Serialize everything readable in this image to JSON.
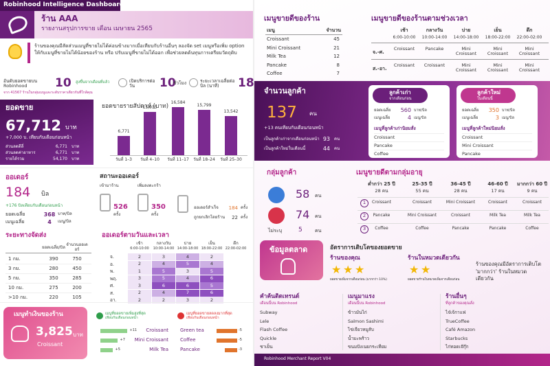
{
  "header": {
    "title": "Robinhood Intelligence Dashboard",
    "store": "ร้าน AAA",
    "subtitle": "รายงานสรุปการขาย เดือน เมษายน 2565"
  },
  "insight": "ร้านของคุณมีสัดส่วนเมนูที่ขายไม่ได้ค่อนข้างมากเมื่อเทียบกับร้านอื่นๆ ลองจัด set เมนูหรือเพิ่ม option ให้กับเมนูที่ขายไม่ได้น้อยของร้าน หรือ ปรับเมนูที่ขายไม่ได้ออก เพื่อช่วยลดต้นทุนการเตรียมวัตถุดิบ",
  "kpis": {
    "rank": {
      "label": "อันดับยอดขายบน Robinhood",
      "value": 10,
      "change": "สูงขึ้นจากเดือนที่แล้ว",
      "note": "จาก 41567 ร้านในกลุ่มเมนูและระดับราคาเดียวกันที่ใกล้คุณ"
    },
    "open_hours": {
      "label": "เปิดบริการต่อวัน",
      "value": 10,
      "unit": "ชั่วโมง"
    },
    "avg_time": {
      "label": "ระยะเวลาเฉลี่ยต่อบิล (นาที)",
      "value": 18
    }
  },
  "sales": {
    "title": "ยอดขาย",
    "value": "67,712",
    "unit": "บาท",
    "change": "+7,000 บ. เทียบกับเดือนก่อนหน้า",
    "rows": [
      {
        "label": "ส่วนลดดีลี่",
        "value": "6,771",
        "unit": "บาท"
      },
      {
        "label": "ส่วนลดค่าอาหาร",
        "value": "6,771",
        "unit": "บาท"
      },
      {
        "label": "รายได้รวม",
        "value": "54,170",
        "unit": "บาท"
      }
    ]
  },
  "weekly_chart": {
    "type": "bar",
    "title": "ยอดขายรายสัปดาห์ (บาท)",
    "categories": [
      "วันที่ 1–3",
      "วันที่ 4–10",
      "วันที่ 11–17",
      "วันที่ 18–24",
      "วันที่ 25–30"
    ],
    "values": [
      6771,
      15015,
      16584,
      15799,
      13542
    ],
    "value_labels": [
      "6,771",
      "15,015",
      "16,584",
      "15,799",
      "13,542"
    ],
    "color": "#7b2a90"
  },
  "orders": {
    "title": "ออเดอร์",
    "value": 184,
    "unit": "บิล",
    "change": "+176 บิลเทียบกับเดือนก่อนหน้า",
    "avg_sales": {
      "label": "ยอดเฉลี่ย",
      "value": 368,
      "unit": "บาท/บิล"
    },
    "avg_items": {
      "label": "เมนูเฉลี่ย",
      "value": 4,
      "unit": "เมนู/บิล"
    }
  },
  "order_status": {
    "title": "สถานะออเดอร์",
    "visits": {
      "label": "เข้ามาร้าน",
      "value": 526,
      "unit": "ครั้ง"
    },
    "cart": {
      "label": "เพิ่มลงตะกร้า",
      "value": 350,
      "unit": "ครั้ง"
    },
    "success": {
      "label": "ออเดอร์สำเร็จ",
      "value": 184,
      "unit": "ครั้ง"
    },
    "cancelled": {
      "label": "ถูกยกเลิกโดยร้าน",
      "value": 22,
      "unit": "ครั้ง"
    }
  },
  "distance": {
    "title": "ระยะทางจัดส่ง",
    "headers": [
      "ยอดเฉลี่ย/บิล",
      "จำนวนออเดอร์"
    ],
    "rows": [
      [
        "1 กม.",
        390,
        750
      ],
      [
        "3 กม.",
        280,
        450
      ],
      [
        "5 กม.",
        350,
        285
      ],
      [
        "10 กม.",
        275,
        200
      ],
      [
        ">10 กม.",
        220,
        105
      ]
    ]
  },
  "order_heatmap": {
    "title": "ออเดอร์ตามวันและเวลา",
    "columns": [
      {
        "name": "เช้า",
        "time": "6:00-10:00"
      },
      {
        "name": "กลางวัน",
        "time": "10:00-14:00"
      },
      {
        "name": "บ่าย",
        "time": "14:00-18:00"
      },
      {
        "name": "เย็น",
        "time": "18:00-22:00"
      },
      {
        "name": "ดึก",
        "time": "22:00-02:00"
      }
    ],
    "rows": [
      {
        "day": "จ.",
        "values": [
          2,
          3,
          4,
          2,
          null
        ]
      },
      {
        "day": "อ.",
        "values": [
          2,
          4,
          5,
          4,
          null
        ]
      },
      {
        "day": "พ.",
        "values": [
          1,
          5,
          3,
          5,
          null
        ]
      },
      {
        "day": "พฤ.",
        "values": [
          3,
          5,
          4,
          6,
          null
        ]
      },
      {
        "day": "ศ.",
        "values": [
          3,
          6,
          6,
          5,
          null
        ]
      },
      {
        "day": "ส.",
        "values": [
          2,
          4,
          7,
          6,
          null
        ]
      },
      {
        "day": "อา.",
        "values": [
          2,
          2,
          3,
          2,
          null
        ]
      }
    ]
  },
  "top_money": {
    "title": "เมนูทำเงินของร้าน",
    "value": "3,825",
    "unit": "บาท",
    "menu": "Croissant"
  },
  "rising": {
    "title": "เมนูที่ยอดขายเพิ่มสูงที่สุด",
    "subtitle": "เทียบกับเดือนก่อนหน้า",
    "categories": [
      "Croissant",
      "Mini Croissant",
      "Milk Tea"
    ],
    "values": [
      11,
      7,
      5
    ],
    "value_labels": [
      "+11",
      "+7",
      "+5"
    ],
    "color": "#8fd18a"
  },
  "falling": {
    "title": "เมนูที่ยอดขายลดลงมากที่สุด",
    "subtitle": "เทียบกับเดือนก่อนหน้า",
    "categories": [
      "Green tea",
      "Coffee",
      "Pancake"
    ],
    "values": [
      -5,
      -5,
      -3
    ],
    "color": "#e0742c"
  },
  "best_menu": {
    "title": "เมนูขายดีของร้าน",
    "headers": [
      "เมนู",
      "จำนวน"
    ],
    "rows": [
      [
        "Croissant",
        45
      ],
      [
        "Mini Croissant",
        21
      ],
      [
        "Milk Tea",
        12
      ],
      [
        "Pancake",
        8
      ],
      [
        "Coffee",
        7
      ]
    ]
  },
  "best_by_time": {
    "title": "เมนูขายดีของร้านตามช่วงเวลา",
    "columns": [
      {
        "name": "เช้า",
        "time": "6:00-10:00"
      },
      {
        "name": "กลางวัน",
        "time": "10:00-14:00"
      },
      {
        "name": "บ่าย",
        "time": "14:00-18:00"
      },
      {
        "name": "เย็น",
        "time": "18:00-22:00"
      },
      {
        "name": "ดึก",
        "time": "22:00-02:00"
      }
    ],
    "rows": [
      {
        "day": "จ.-ศ.",
        "menus": [
          "Croissant",
          "Pancake",
          "Mini Croissant",
          "Mini Croissant",
          "Mini Croissant"
        ]
      },
      {
        "day": "ส.-อา.",
        "menus": [
          "Croissant",
          "Croissant",
          "Mini Croissant",
          "Mini Croissant",
          "Mini Croissant"
        ]
      }
    ]
  },
  "customers": {
    "title": "จำนวนลูกค้า",
    "value": 137,
    "unit": "คน",
    "change": "+13 คนเทียบกับเดือนก่อนหน้า",
    "rows": [
      {
        "label": "เป็นลูกค้าเก่าจากเดือนก่อนหน้า",
        "value": 93,
        "unit": "คน"
      },
      {
        "label": "เป็นลูกค้าใหม่ในเดือนนี้",
        "value": 44,
        "unit": "คน"
      }
    ]
  },
  "old_customers": {
    "title": "ลูกค้าเก่า",
    "subtitle": "จากเดือนก่อน",
    "avg_sales": {
      "label": "ยอดเฉลี่ย",
      "value": 560,
      "unit": "บาท/บิล"
    },
    "avg_items": {
      "label": "เมนูเฉลี่ย",
      "value": 4,
      "unit": "เมนู/บิล"
    },
    "menu_title": "เมนูที่ลูกค้าเก่านิยมสั่ง",
    "menus": [
      "Croissant",
      "Pancake",
      "Coffee"
    ]
  },
  "new_customers": {
    "title": "ลูกค้าใหม่",
    "subtitle": "ในเดือนนี้",
    "avg_sales": {
      "label": "ยอดเฉลี่ย",
      "value": 350,
      "unit": "บาท/บิล"
    },
    "avg_items": {
      "label": "เมนูเฉลี่ย",
      "value": 3,
      "unit": "เมนู/บิล"
    },
    "menu_title": "เมนูที่ลูกค้าใหม่นิยมสั่ง",
    "menus": [
      "Croissant",
      "Mini Croissant",
      "Pancake"
    ]
  },
  "customer_groups": {
    "title": "กลุ่มลูกค้า",
    "male": {
      "value": 58,
      "unit": "คน"
    },
    "female": {
      "value": 74,
      "unit": "คน"
    },
    "unknown": {
      "label": "ไม่ระบุ",
      "value": 5,
      "unit": "คน"
    }
  },
  "age_menu": {
    "title": "เมนูขายดีตามกลุ่มอายุ",
    "columns": [
      {
        "name": "ต่ำกว่า 25 ปี",
        "count": "28 คน"
      },
      {
        "name": "25-35 ปี",
        "count": "55 คน"
      },
      {
        "name": "36-45 ปี",
        "count": "28 คน"
      },
      {
        "name": "46-60 ปี",
        "count": "17 คน"
      },
      {
        "name": "มากกว่า 60 ปี",
        "count": "9 คน"
      }
    ],
    "rows": [
      {
        "rank": 1,
        "menus": [
          "Croissant",
          "Croissant",
          "Mini Croissant",
          "Croissant",
          "Croissant"
        ]
      },
      {
        "rank": 2,
        "menus": [
          "Pancake",
          "Mini Croissant",
          "Croissant",
          "Milk Tea",
          "Milk Tea"
        ]
      },
      {
        "rank": 3,
        "menus": [
          "Coffee",
          "Coffee",
          "Pancake",
          "Pancake",
          "Coffee"
        ]
      }
    ]
  },
  "market": {
    "title": "ข้อมูลตลาด",
    "growth_title": "อัตราการเติบโตของยอดขาย",
    "your_store": {
      "label": "ร้านของคุณ",
      "stars": 3,
      "note": "ยอดขายเพิ่มจากเดือนก่อน (มากกว่า 10%)"
    },
    "category": {
      "label": "ร้านในหมวดเดียวกัน",
      "stars": 2,
      "note": "ยอดขายร้านในหมวดเพิ่มจากเดือนก่อน"
    },
    "summary": "ร้านของคุณมีอัตราการเติบโต 'มากกว่า' ร้านในหมวดเดียวกัน"
  },
  "trends": [
    {
      "title": "คำค้นติดเทรนด์",
      "subtitle": "เดือนนี้บน Robinhood",
      "items": [
        "Subway",
        "Lele",
        "Flash Coffee",
        "Quickle",
        "ชาเย็น"
      ]
    },
    {
      "title": "เมนูมาแรง",
      "subtitle": "เดือนนี้บน Robinhood",
      "items": [
        "ข้าวมันไก่",
        "Salmon Sashimi",
        "ไข่เจียวหมูสับ",
        "น้ำมะพร้าว",
        "ขนมปังเนยกระเทียม"
      ]
    },
    {
      "title": "ร้านอื่นๆ",
      "subtitle": "ที่ลูกค้าของคุณสั่ง",
      "items": [
        "ไจ๋เจ้กาแฟ",
        "TrueCoffee",
        "Café Amazon",
        "Starbucks",
        "ไก่ทอดเจ๊กุ๊ก"
      ]
    }
  ],
  "footer": "Robinhood Merchant Report V04"
}
